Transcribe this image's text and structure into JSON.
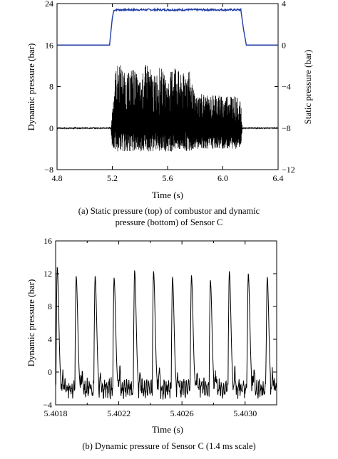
{
  "chart_data": [
    {
      "type": "line",
      "panel": "a",
      "caption": [
        "(a) Static pressure (top) of combustor and dynamic",
        "pressure (bottom) of Sensor C"
      ],
      "xlabel": "Time (s)",
      "ylabel_left": "Dynamic pressure (bar)",
      "ylabel_right": "Static pressure (bar)",
      "xlim": [
        4.8,
        6.4
      ],
      "x_ticks": [
        "4.8",
        "5.2",
        "5.6",
        "6.0",
        "6.4"
      ],
      "ylim_left": [
        -8,
        24
      ],
      "y_ticks_left": [
        "−8",
        "0",
        "8",
        "16",
        "24"
      ],
      "ylim_right": [
        -12,
        4
      ],
      "y_ticks_right": [
        "−12",
        "−8",
        "−4",
        "0",
        "4"
      ],
      "series": [
        {
          "axis": "right",
          "color": "#1f3aa6",
          "x": [
            4.8,
            5.0,
            5.18,
            5.2,
            5.21,
            5.22,
            5.3,
            5.5,
            5.8,
            6.0,
            6.13,
            6.15,
            6.17,
            6.3,
            6.4
          ],
          "y": [
            0,
            0,
            0,
            2.6,
            3.3,
            3.4,
            3.4,
            3.4,
            3.4,
            3.4,
            3.4,
            1.5,
            0,
            0,
            0
          ]
        },
        {
          "axis": "left",
          "color": "#000000",
          "x": [
            4.8,
            5.0,
            5.19,
            5.2,
            5.22,
            5.25,
            5.3,
            5.35,
            5.4,
            5.45,
            5.5,
            5.55,
            5.6,
            5.65,
            5.7,
            5.75,
            5.8,
            5.85,
            5.9,
            5.95,
            6.0,
            6.05,
            6.1,
            6.13,
            6.14,
            6.4
          ],
          "y_max": [
            0,
            0,
            0.5,
            4,
            11,
            13,
            10,
            12,
            9,
            13,
            10,
            12,
            9,
            13,
            10,
            12,
            6,
            7,
            6,
            7,
            6,
            7,
            6,
            5,
            0.5,
            0
          ],
          "y_min": [
            0,
            0,
            -0.5,
            -4,
            -4.5,
            -4.5,
            -4.5,
            -4.5,
            -4.5,
            -4.5,
            -4.5,
            -4.5,
            -4.5,
            -4.5,
            -4.5,
            -4.5,
            -4,
            -4,
            -4,
            -4,
            -4,
            -4,
            -4,
            -3.5,
            -0.5,
            0
          ]
        }
      ]
    },
    {
      "type": "line",
      "panel": "b",
      "caption": [
        "(b) Dynamic pressure of Sensor C (1.4 ms scale)"
      ],
      "xlabel": "Time (s)",
      "ylabel": "Dynamic pressure (bar)",
      "xlim": [
        5.4018,
        5.4032
      ],
      "x_ticks": [
        "5.4018",
        "5.4022",
        "5.4026",
        "5.4030"
      ],
      "ylim": [
        -4,
        16
      ],
      "y_ticks": [
        "−4",
        "0",
        "4",
        "8",
        "12",
        "16"
      ],
      "peak_times": [
        5.40181,
        5.40193,
        5.40205,
        5.40217,
        5.4023,
        5.40242,
        5.40254,
        5.40266,
        5.40278,
        5.4029,
        5.40302,
        5.40314
      ],
      "peak_values": [
        12.8,
        11.7,
        11.7,
        11.5,
        12.4,
        12.3,
        11.6,
        11.8,
        11.2,
        12.3,
        12.0,
        11.6
      ],
      "baseline": -2,
      "series": [
        {
          "color": "#000000",
          "description_values_min": -3.8,
          "description_values_max": 12.8
        }
      ]
    }
  ]
}
